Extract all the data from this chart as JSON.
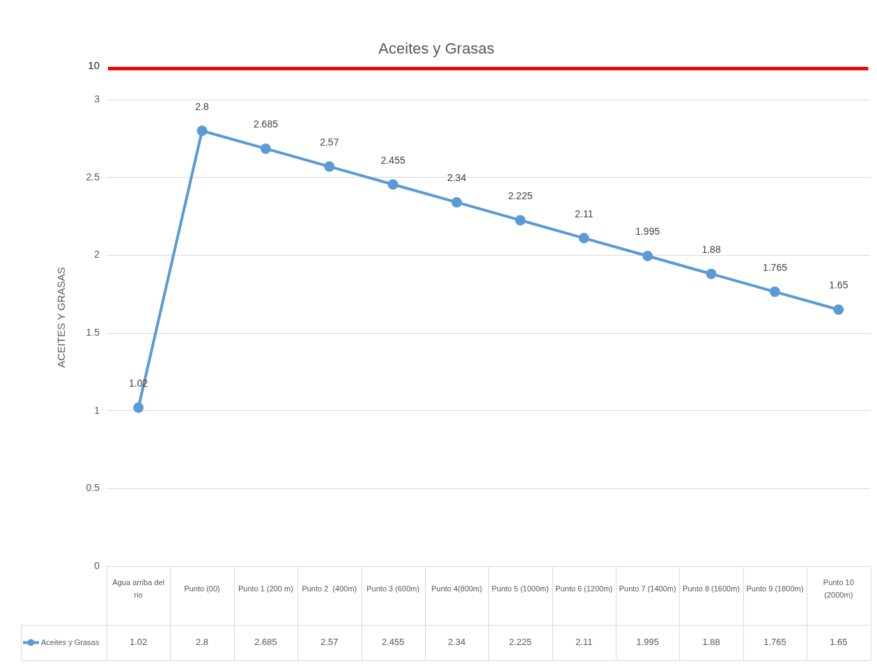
{
  "chart_data": {
    "type": "line",
    "title": "Aceites y Grasas",
    "ylabel": "ACEITES Y GRASAS",
    "categories": [
      "Agua arriba del rio",
      "Punto (00)",
      "Punto 1 (200 m)",
      "Punto 2  (400m)",
      "Punto 3 (600m)",
      "Punto 4(800m)",
      "Punto 5 (1000m)",
      "Punto 6 (1200m)",
      "Punto 7 (1400m)",
      "Punto 8 (1600m)",
      "Punto 9 (1800m)",
      "Punto 10 (2000m)"
    ],
    "series": [
      {
        "name": "Aceites y Grasas",
        "color": "#5b9bd5",
        "values": [
          1.02,
          2.8,
          2.685,
          2.57,
          2.455,
          2.34,
          2.225,
          2.11,
          1.995,
          1.88,
          1.765,
          1.65
        ]
      }
    ],
    "ylim": [
      0,
      3.2
    ],
    "yticks": [
      0,
      0.5,
      1,
      1.5,
      2,
      2.5,
      3
    ],
    "ref_lines": [
      {
        "axis": "y",
        "value": 3.2,
        "color": "#ff0000"
      }
    ],
    "annotations": [
      "10",
      {
        "text": "1.02",
        "x": "Agua arriba del rio",
        "y": 1.02
      },
      {
        "text": "2.8",
        "x": "Punto (00)",
        "y": 2.8
      },
      {
        "text": "2.685",
        "x": "Punto 1 (200 m)",
        "y": 2.685
      },
      {
        "text": "2.57",
        "x": "Punto 2  (400m)",
        "y": 2.57
      },
      {
        "text": "2.455",
        "x": "Punto 3 (600m)",
        "y": 2.455
      },
      {
        "text": "2.34",
        "x": "Punto 4(800m)",
        "y": 2.34
      },
      {
        "text": "2.225",
        "x": "Punto 5 (1000m)",
        "y": 2.225
      },
      {
        "text": "2.11",
        "x": "Punto 6 (1200m)",
        "y": 2.11
      },
      {
        "text": "1.995",
        "x": "Punto 7 (1400m)",
        "y": 1.995
      },
      {
        "text": "1.88",
        "x": "Punto 8 (1600m)",
        "y": 1.88
      },
      {
        "text": "1.765",
        "x": "Punto 9 (1800m)",
        "y": 1.765
      },
      {
        "text": "1.65",
        "x": "Punto 10 (2000m)",
        "y": 1.65
      }
    ],
    "grid": "y",
    "legend": "bottom",
    "marker": "circle",
    "data_labels": true
  }
}
